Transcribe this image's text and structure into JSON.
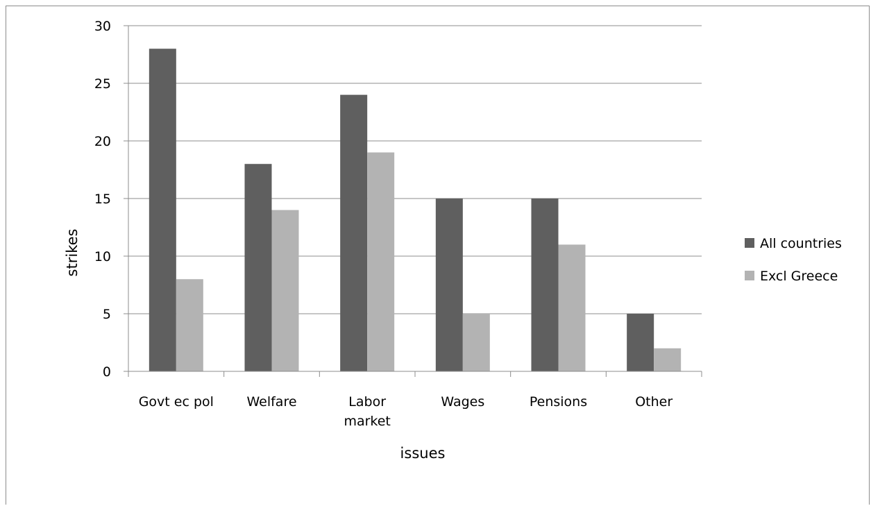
{
  "chart_data": {
    "type": "bar",
    "categories": [
      [
        "Govt ec pol"
      ],
      [
        "Welfare"
      ],
      [
        "Labor",
        "market"
      ],
      [
        "Wages"
      ],
      [
        "Pensions"
      ],
      [
        "Other"
      ]
    ],
    "series": [
      {
        "name": "All countries",
        "color": "#5f5f5f",
        "values": [
          28,
          18,
          24,
          15,
          15,
          5
        ]
      },
      {
        "name": "Excl Greece",
        "color": "#b3b3b3",
        "values": [
          8,
          14,
          19,
          5,
          11,
          2
        ]
      }
    ],
    "xlabel": "issues",
    "ylabel": "strikes",
    "ylim": [
      0,
      30
    ],
    "yticks": [
      "0",
      "5",
      "10",
      "15",
      "20",
      "25",
      "30"
    ],
    "grid": true,
    "legend_position": "right"
  }
}
